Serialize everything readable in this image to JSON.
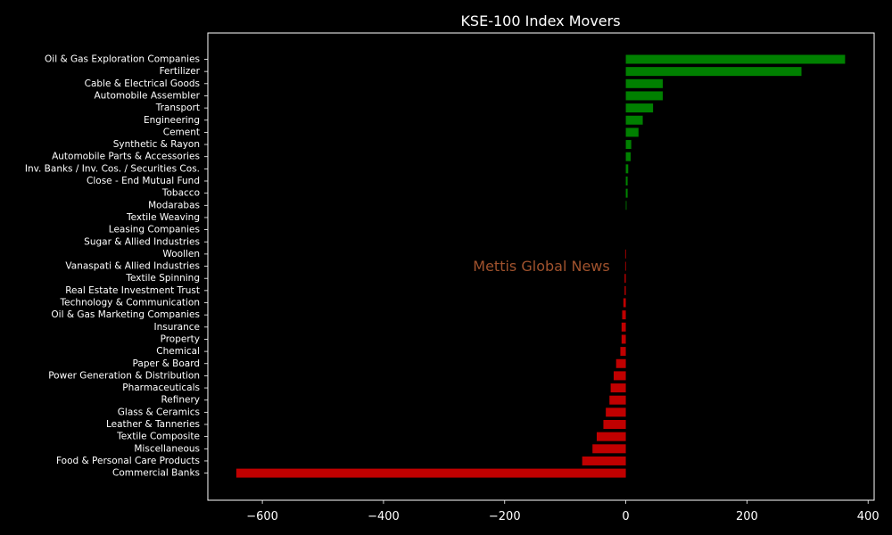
{
  "chart_data": {
    "type": "bar",
    "orientation": "horizontal",
    "title": "KSE-100 Index Movers",
    "xlabel": "",
    "ylabel": "",
    "xlim": [
      -690,
      410
    ],
    "x_ticks": [
      -600,
      -400,
      -200,
      0,
      200,
      400
    ],
    "x_tick_labels": [
      "−600",
      "−400",
      "−200",
      "0",
      "200",
      "400"
    ],
    "grid": false,
    "background": "#000000",
    "axes_color": "#ffffff",
    "positive_color": "#008000",
    "negative_color": "#c00000",
    "categories": [
      "Oil & Gas Exploration Companies",
      "Fertilizer",
      "Cable & Electrical Goods",
      "Automobile Assembler",
      "Transport",
      "Engineering",
      "Cement",
      "Synthetic & Rayon",
      "Automobile Parts & Accessories",
      "Inv. Banks / Inv. Cos. / Securities Cos.",
      "Close - End Mutual Fund",
      "Tobacco",
      "Modarabas",
      "Textile Weaving",
      "Leasing Companies",
      "Sugar & Allied Industries",
      "Woollen",
      "Vanaspati & Allied Industries",
      "Textile Spinning",
      "Real Estate Investment Trust",
      "Technology & Communication",
      "Oil & Gas Marketing Companies",
      "Insurance",
      "Property",
      "Chemical",
      "Paper & Board",
      "Power Generation & Distribution",
      "Pharmaceuticals",
      "Refinery",
      "Glass & Ceramics",
      "Leather & Tanneries",
      "Textile Composite",
      "Miscellaneous",
      "Food & Personal Care Products",
      "Commercial Banks"
    ],
    "values": [
      362,
      290,
      61,
      61,
      45,
      28,
      21,
      9,
      8,
      4,
      3,
      3,
      1,
      0,
      0,
      0,
      -1,
      -1,
      -2,
      -2,
      -4,
      -6,
      -7,
      -7,
      -9,
      -16,
      -20,
      -25,
      -27,
      -33,
      -37,
      -48,
      -55,
      -72,
      -643
    ]
  },
  "watermark": {
    "text": "Mettis Global News",
    "color": "#a0522d"
  }
}
